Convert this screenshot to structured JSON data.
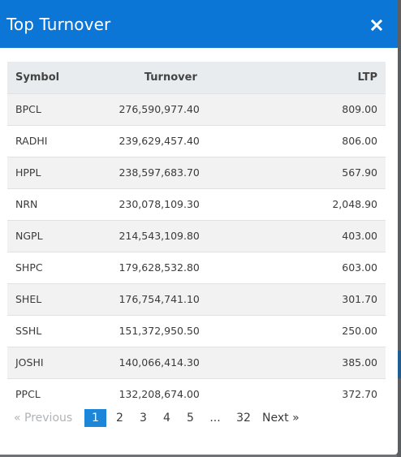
{
  "modal": {
    "title": "Top Turnover",
    "close_icon": "close-icon"
  },
  "table": {
    "headers": [
      "Symbol",
      "Turnover",
      "LTP"
    ],
    "rows": [
      {
        "symbol": "BPCL",
        "turnover": "276,590,977.40",
        "ltp": "809.00"
      },
      {
        "symbol": "RADHI",
        "turnover": "239,629,457.40",
        "ltp": "806.00"
      },
      {
        "symbol": "HPPL",
        "turnover": "238,597,683.70",
        "ltp": "567.90"
      },
      {
        "symbol": "NRN",
        "turnover": "230,078,109.30",
        "ltp": "2,048.90"
      },
      {
        "symbol": "NGPL",
        "turnover": "214,543,109.80",
        "ltp": "403.00"
      },
      {
        "symbol": "SHPC",
        "turnover": "179,628,532.80",
        "ltp": "603.00"
      },
      {
        "symbol": "SHEL",
        "turnover": "176,754,741.10",
        "ltp": "301.70"
      },
      {
        "symbol": "SSHL",
        "turnover": "151,372,950.50",
        "ltp": "250.00"
      },
      {
        "symbol": "JOSHI",
        "turnover": "140,066,414.30",
        "ltp": "385.00"
      },
      {
        "symbol": "PPCL",
        "turnover": "132,208,674.00",
        "ltp": "372.70"
      }
    ]
  },
  "pagination": {
    "previous": "«   Previous",
    "pages": [
      "1",
      "2",
      "3",
      "4",
      "5"
    ],
    "ellipsis": "...",
    "last_page": "32",
    "next": "Next   »",
    "active_page": "1"
  },
  "colors": {
    "header_bg": "#0b76d6",
    "active_page_bg": "#1c86d8"
  }
}
